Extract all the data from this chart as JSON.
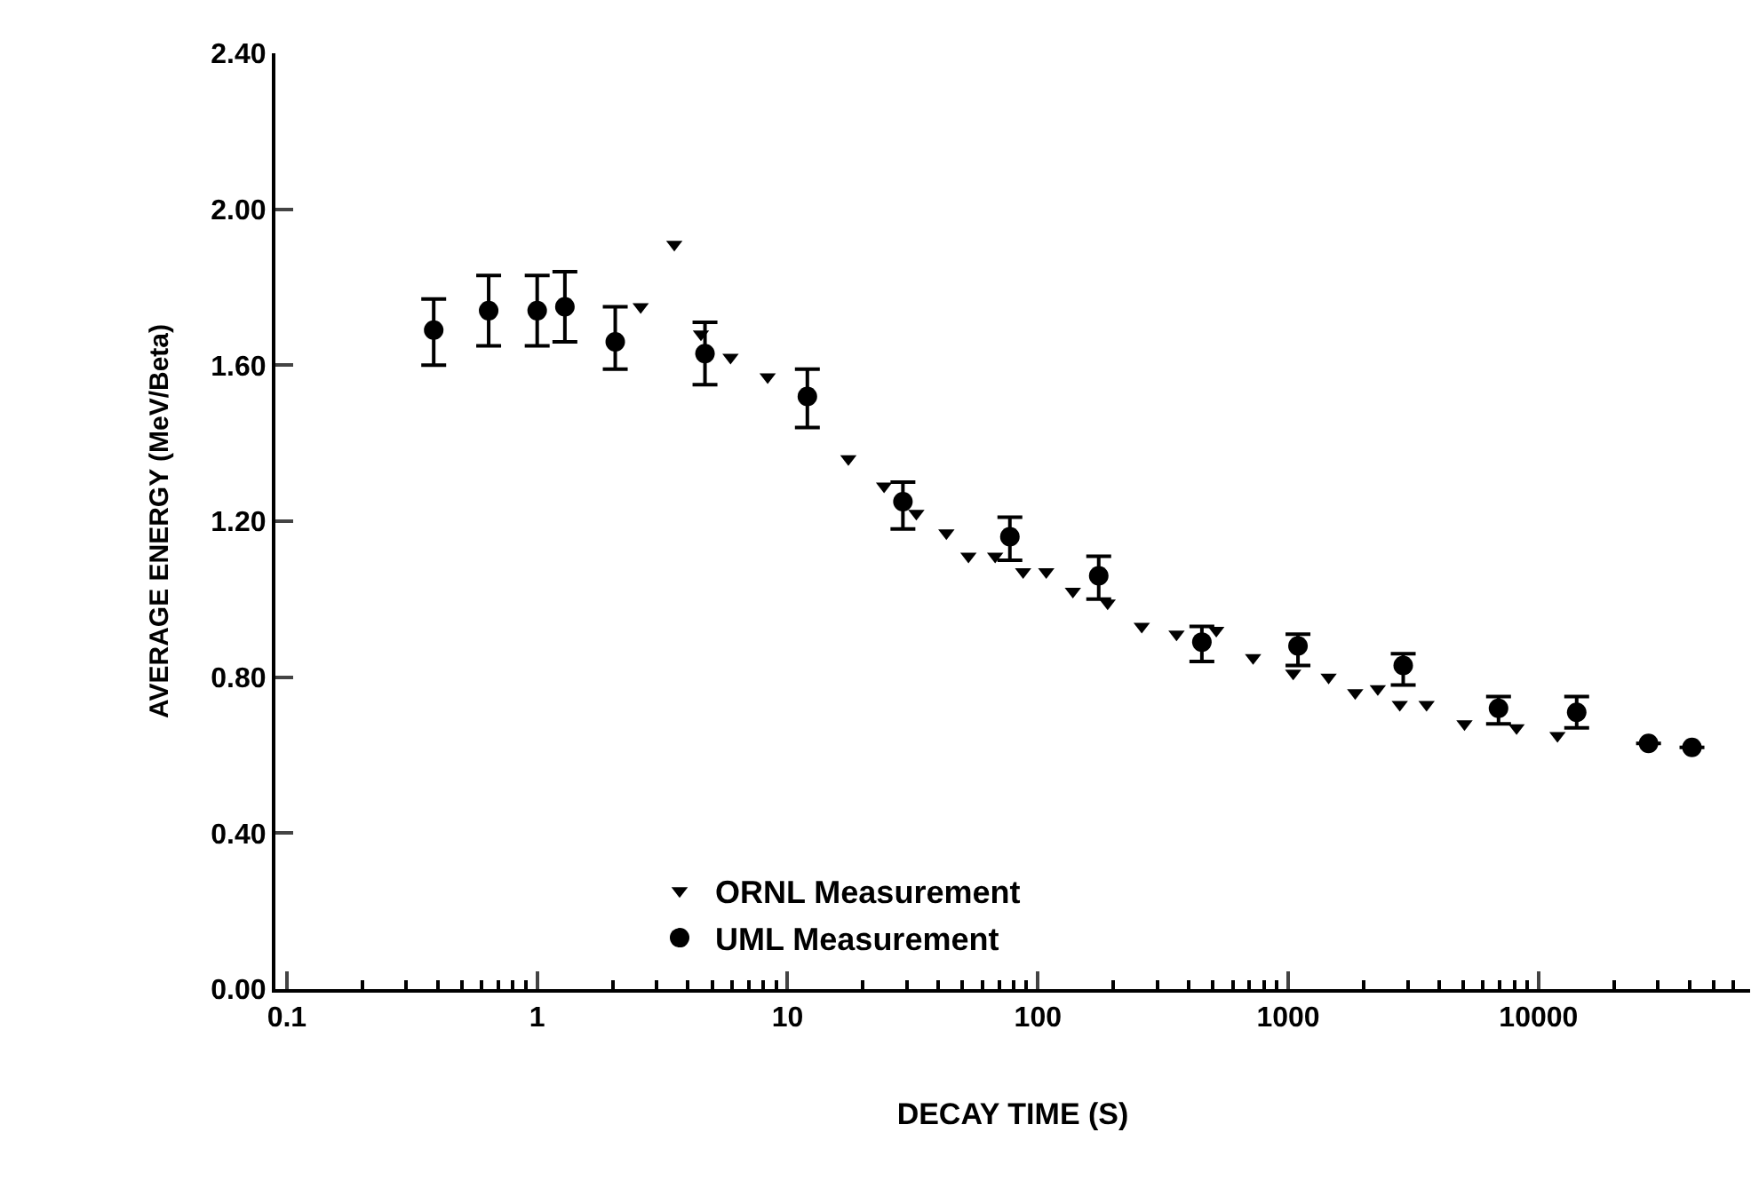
{
  "chart_data": {
    "type": "scatter",
    "xlabel": "DECAY TIME (S)",
    "ylabel": "AVERAGE ENERGY (MeV/Beta)",
    "log": "x",
    "xlim": [
      0.09,
      70000
    ],
    "xticks": [
      0.1,
      1,
      10,
      100,
      1000,
      10000
    ],
    "ylim": [
      0,
      2.4
    ],
    "yticks": [
      {
        "value": 0,
        "label": "0.00"
      },
      {
        "value": 0.4,
        "label": "0.40"
      },
      {
        "value": 0.8,
        "label": "0.80"
      },
      {
        "value": 1.2,
        "label": "1.20"
      },
      {
        "value": 1.6,
        "label": "1.60"
      },
      {
        "value": 2,
        "label": "2.00"
      },
      {
        "value": 2.4,
        "label": "2.40"
      }
    ],
    "grid": false,
    "legend": "bottom left",
    "series": [
      {
        "name": "ORNL Measurement",
        "color": "#000000",
        "marker": "triangle",
        "x": [
          2.59,
          3.53,
          4.51,
          5.92,
          8.33,
          17.5,
          24.3,
          32.7,
          43.1,
          52.8,
          67.5,
          87.3,
          108,
          138,
          190,
          260,
          358,
          516,
          724,
          1047,
          1450,
          1852,
          2280,
          2790,
          3570,
          5060,
          8170,
          11900
        ],
        "values": [
          1.75,
          1.91,
          1.68,
          1.62,
          1.57,
          1.36,
          1.29,
          1.22,
          1.17,
          1.11,
          1.11,
          1.07,
          1.07,
          1.02,
          0.99,
          0.93,
          0.91,
          0.92,
          0.85,
          0.81,
          0.8,
          0.76,
          0.77,
          0.73,
          0.73,
          0.68,
          0.67,
          0.65
        ]
      },
      {
        "name": "UML Measurement",
        "color": "#000000",
        "marker": "circle",
        "x": [
          0.386,
          0.64,
          1.0,
          1.29,
          2.05,
          4.68,
          12.0,
          28.9,
          77.3,
          175,
          452,
          1094,
          2880,
          6920,
          14200,
          27500,
          41000
        ],
        "values": [
          1.69,
          1.74,
          1.74,
          1.75,
          1.66,
          1.63,
          1.52,
          1.25,
          1.16,
          1.06,
          0.89,
          0.88,
          0.83,
          0.72,
          0.71,
          0.63,
          0.62
        ],
        "errors": [
          [
            1.6,
            1.77
          ],
          [
            1.65,
            1.83
          ],
          [
            1.65,
            1.83
          ],
          [
            1.66,
            1.84
          ],
          [
            1.59,
            1.75
          ],
          [
            1.55,
            1.71
          ],
          [
            1.44,
            1.59
          ],
          [
            1.18,
            1.3
          ],
          [
            1.1,
            1.21
          ],
          [
            1.0,
            1.11
          ],
          [
            0.84,
            0.93
          ],
          [
            0.83,
            0.91
          ],
          [
            0.78,
            0.86
          ],
          [
            0.68,
            0.75
          ],
          [
            0.67,
            0.75
          ],
          null,
          null
        ]
      }
    ]
  }
}
